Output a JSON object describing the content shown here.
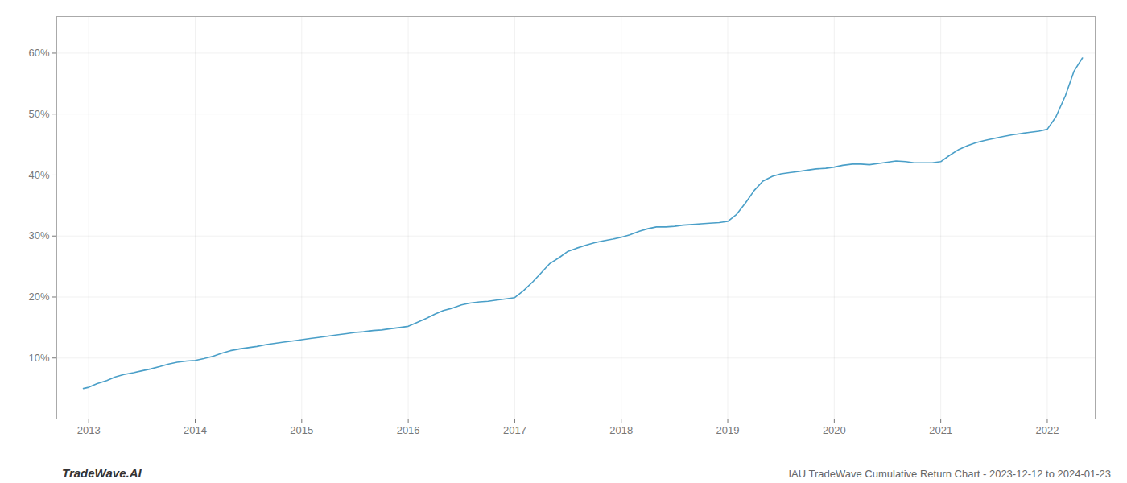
{
  "chart_data": {
    "type": "line",
    "title": "IAU TradeWave Cumulative Return Chart - 2023-12-12 to 2024-01-23",
    "annotations": [
      "TradeWave.AI"
    ],
    "color": "#4a9fc8",
    "grid": true,
    "x": [
      2012.95,
      2013.0,
      2013.08,
      2013.17,
      2013.25,
      2013.33,
      2013.42,
      2013.5,
      2013.58,
      2013.67,
      2013.75,
      2013.83,
      2013.92,
      2014.0,
      2014.08,
      2014.17,
      2014.25,
      2014.33,
      2014.42,
      2014.5,
      2014.58,
      2014.67,
      2014.75,
      2014.83,
      2014.92,
      2015.0,
      2015.08,
      2015.17,
      2015.25,
      2015.33,
      2015.42,
      2015.5,
      2015.58,
      2015.67,
      2015.75,
      2015.83,
      2015.92,
      2016.0,
      2016.08,
      2016.17,
      2016.25,
      2016.33,
      2016.42,
      2016.5,
      2016.58,
      2016.67,
      2016.75,
      2016.83,
      2016.92,
      2017.0,
      2017.08,
      2017.17,
      2017.25,
      2017.33,
      2017.42,
      2017.5,
      2017.58,
      2017.67,
      2017.75,
      2017.83,
      2017.92,
      2018.0,
      2018.08,
      2018.17,
      2018.25,
      2018.33,
      2018.42,
      2018.5,
      2018.58,
      2018.67,
      2018.75,
      2018.83,
      2018.92,
      2019.0,
      2019.08,
      2019.17,
      2019.25,
      2019.33,
      2019.42,
      2019.5,
      2019.58,
      2019.67,
      2019.75,
      2019.83,
      2019.92,
      2020.0,
      2020.08,
      2020.17,
      2020.25,
      2020.33,
      2020.42,
      2020.5,
      2020.58,
      2020.67,
      2020.75,
      2020.83,
      2020.92,
      2021.0,
      2021.08,
      2021.17,
      2021.25,
      2021.33,
      2021.42,
      2021.5,
      2021.58,
      2021.67,
      2021.75,
      2021.83,
      2021.92,
      2022.0,
      2022.08,
      2022.17,
      2022.25,
      2022.33
    ],
    "values": [
      5.0,
      5.2,
      5.8,
      6.3,
      6.9,
      7.3,
      7.6,
      7.9,
      8.2,
      8.6,
      9.0,
      9.3,
      9.5,
      9.6,
      9.9,
      10.3,
      10.8,
      11.2,
      11.5,
      11.7,
      11.9,
      12.2,
      12.4,
      12.6,
      12.8,
      13.0,
      13.2,
      13.4,
      13.6,
      13.8,
      14.0,
      14.2,
      14.3,
      14.5,
      14.6,
      14.8,
      15.0,
      15.2,
      15.8,
      16.5,
      17.2,
      17.8,
      18.2,
      18.7,
      19.0,
      19.2,
      19.3,
      19.5,
      19.7,
      19.9,
      21.0,
      22.5,
      24.0,
      25.5,
      26.5,
      27.5,
      28.0,
      28.5,
      28.9,
      29.2,
      29.5,
      29.8,
      30.2,
      30.8,
      31.2,
      31.5,
      31.5,
      31.6,
      31.8,
      31.9,
      32.0,
      32.1,
      32.2,
      32.4,
      33.5,
      35.5,
      37.5,
      39.0,
      39.8,
      40.2,
      40.4,
      40.6,
      40.8,
      41.0,
      41.1,
      41.3,
      41.6,
      41.8,
      41.8,
      41.7,
      41.9,
      42.1,
      42.3,
      42.2,
      42.0,
      42.0,
      42.0,
      42.2,
      43.2,
      44.2,
      44.8,
      45.3,
      45.7,
      46.0,
      46.3,
      46.6,
      46.8,
      47.0,
      47.2,
      47.5,
      49.5,
      53.0,
      57.0,
      59.2
    ],
    "xlim": [
      2012.7,
      2022.45
    ],
    "xticks": [
      2013,
      2014,
      2015,
      2016,
      2017,
      2018,
      2019,
      2020,
      2021,
      2022
    ],
    "ylim": [
      0,
      66
    ],
    "yticks": [
      {
        "value": 10,
        "label": "10%"
      },
      {
        "value": 20,
        "label": "20%"
      },
      {
        "value": 30,
        "label": "30%"
      },
      {
        "value": 40,
        "label": "40%"
      },
      {
        "value": 50,
        "label": "50%"
      },
      {
        "value": 60,
        "label": "60%"
      }
    ]
  }
}
